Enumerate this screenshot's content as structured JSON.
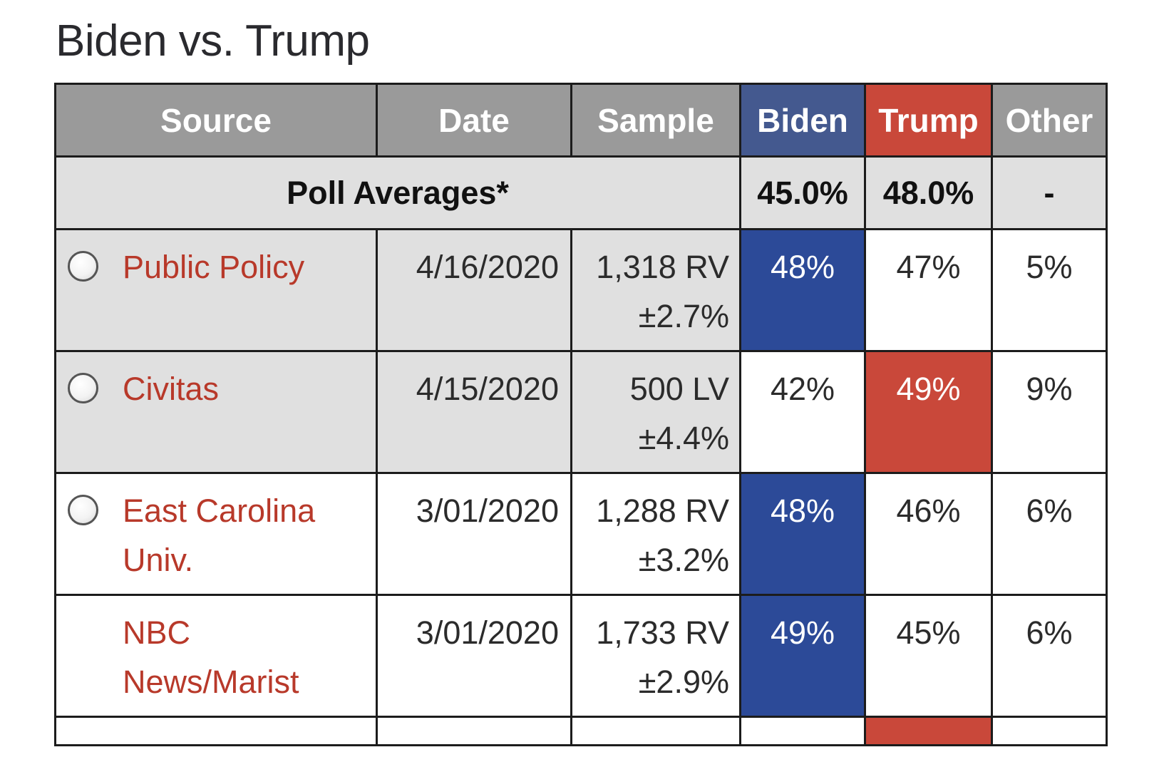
{
  "title": "Biden vs. Trump",
  "table": {
    "headers": {
      "source": "Source",
      "date": "Date",
      "sample": "Sample",
      "biden": "Biden",
      "trump": "Trump",
      "other": "Other"
    },
    "averages": {
      "label": "Poll Averages*",
      "biden": "45.0%",
      "trump": "48.0%",
      "other": "-"
    },
    "rows": [
      {
        "source": "Public Policy",
        "date": "4/16/2020",
        "sample": "1,318 RV",
        "moe": "±2.7%",
        "biden": "48%",
        "trump": "47%",
        "other": "5%",
        "winner": "biden",
        "shaded": true,
        "radio": true
      },
      {
        "source": "Civitas",
        "date": "4/15/2020",
        "sample": "500 LV",
        "moe": "±4.4%",
        "biden": "42%",
        "trump": "49%",
        "other": "9%",
        "winner": "trump",
        "shaded": true,
        "radio": true
      },
      {
        "source": "East Carolina Univ.",
        "date": "3/01/2020",
        "sample": "1,288 RV",
        "moe": "±3.2%",
        "biden": "48%",
        "trump": "46%",
        "other": "6%",
        "winner": "biden",
        "shaded": false,
        "radio": true
      },
      {
        "source": "NBC News/Marist",
        "date": "3/01/2020",
        "sample": "1,733 RV",
        "moe": "±2.9%",
        "biden": "49%",
        "trump": "45%",
        "other": "6%",
        "winner": "biden",
        "shaded": false,
        "radio": false
      }
    ],
    "colors": {
      "header_gray": "#9a9a9a",
      "header_biden": "#44598f",
      "header_trump": "#c9483a",
      "cell_biden_win": "#2c4a98",
      "cell_trump_win": "#c9483a",
      "row_shade": "#e0e0e0",
      "source_link": "#b8392a"
    },
    "partial_row_winner": "trump"
  }
}
